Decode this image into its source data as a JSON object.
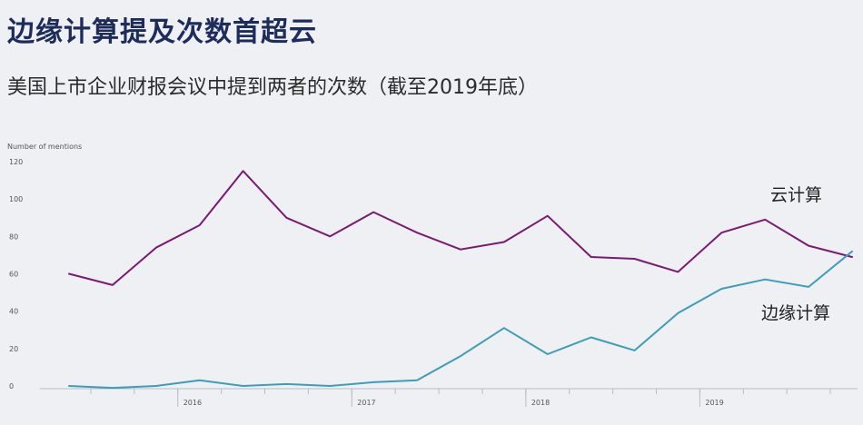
{
  "title": "边缘计算提及次数首超云",
  "subtitle": "美国上市企业财报会议中提到两者的次数（截至2019年底）",
  "colors": {
    "background": "#eef0f4",
    "title": "#1d2c5a",
    "cloud": "#7b1a72",
    "edge": "#3e9db7",
    "axis_text": "#555555"
  },
  "chart_data": {
    "type": "line",
    "ylabel": "Number of mentions",
    "ylim": [
      0,
      120
    ],
    "yticks": [
      0,
      20,
      40,
      60,
      80,
      100,
      120
    ],
    "grid": false,
    "x_tick_labels": [
      "2016",
      "2017",
      "2018",
      "2019"
    ],
    "x": [
      "2015Q2",
      "2015Q3",
      "2015Q4",
      "2016Q1",
      "2016Q2",
      "2016Q3",
      "2016Q4",
      "2017Q1",
      "2017Q2",
      "2017Q3",
      "2017Q4",
      "2018Q1",
      "2018Q2",
      "2018Q3",
      "2018Q4",
      "2019Q1",
      "2019Q2",
      "2019Q3",
      "2019Q4"
    ],
    "series": [
      {
        "name": "云计算",
        "values": [
          60,
          54,
          74,
          86,
          115,
          90,
          80,
          93,
          82,
          73,
          77,
          91,
          69,
          68,
          61,
          82,
          89,
          75,
          69
        ]
      },
      {
        "name": "边缘计算",
        "values": [
          0,
          -1,
          0,
          3,
          0,
          1,
          0,
          2,
          3,
          16,
          31,
          17,
          26,
          19,
          39,
          52,
          57,
          53,
          72
        ]
      }
    ]
  }
}
